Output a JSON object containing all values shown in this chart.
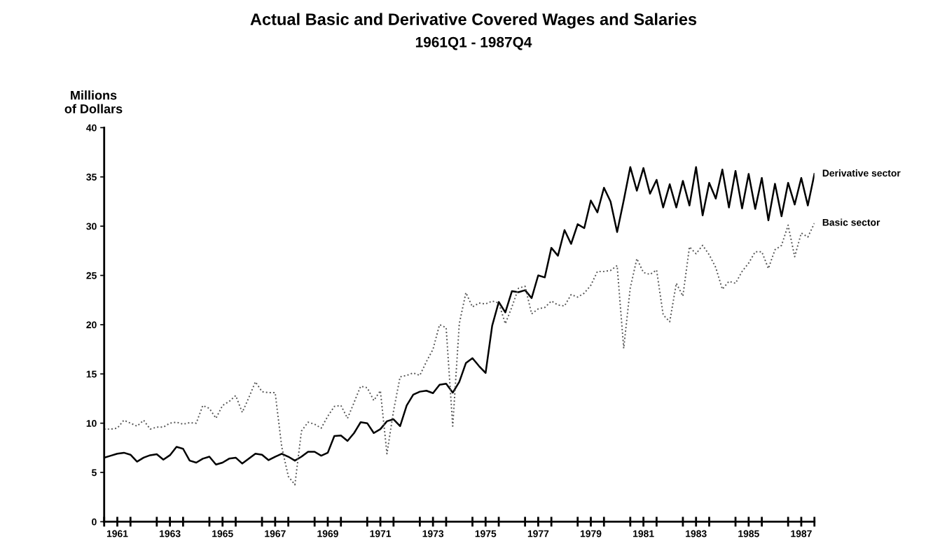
{
  "chart_data": {
    "type": "line",
    "title": "Actual Basic and Derivative Covered Wages and Salaries",
    "subtitle": "1961Q1 - 1987Q4",
    "ylabel": "Millions\nof Dollars",
    "x": [
      1961,
      1961.25,
      1961.5,
      1961.75,
      1962,
      1962.25,
      1962.5,
      1962.75,
      1963,
      1963.25,
      1963.5,
      1963.75,
      1964,
      1964.25,
      1964.5,
      1964.75,
      1965,
      1965.25,
      1965.5,
      1965.75,
      1966,
      1966.25,
      1966.5,
      1966.75,
      1967,
      1967.25,
      1967.5,
      1967.75,
      1968,
      1968.25,
      1968.5,
      1968.75,
      1969,
      1969.25,
      1969.5,
      1969.75,
      1970,
      1970.25,
      1970.5,
      1970.75,
      1971,
      1971.25,
      1971.5,
      1971.75,
      1972,
      1972.25,
      1972.5,
      1972.75,
      1973,
      1973.25,
      1973.5,
      1973.75,
      1974,
      1974.25,
      1974.5,
      1974.75,
      1975,
      1975.25,
      1975.5,
      1975.75,
      1976,
      1976.25,
      1976.5,
      1976.75,
      1977,
      1977.25,
      1977.5,
      1977.75,
      1978,
      1978.25,
      1978.5,
      1978.75,
      1979,
      1979.25,
      1979.5,
      1979.75,
      1980,
      1980.25,
      1980.5,
      1980.75,
      1981,
      1981.25,
      1981.5,
      1981.75,
      1982,
      1982.25,
      1982.5,
      1982.75,
      1983,
      1983.25,
      1983.5,
      1983.75,
      1984,
      1984.25,
      1984.5,
      1984.75,
      1985,
      1985.25,
      1985.5,
      1985.75,
      1986,
      1986.25,
      1986.5,
      1986.75,
      1987,
      1987.25,
      1987.5,
      1987.75,
      1988
    ],
    "series": [
      {
        "name": "Derivative sector",
        "color": "#000000",
        "line_style": "solid",
        "values": [
          6.5,
          6.7,
          6.9,
          7.0,
          6.8,
          6.1,
          6.5,
          6.75,
          6.85,
          6.3,
          6.75,
          7.6,
          7.4,
          6.2,
          6.0,
          6.4,
          6.6,
          5.8,
          6.0,
          6.4,
          6.5,
          5.9,
          6.4,
          6.9,
          6.8,
          6.25,
          6.6,
          6.9,
          6.6,
          6.2,
          6.6,
          7.1,
          7.1,
          6.7,
          7.0,
          8.7,
          8.75,
          8.2,
          9.0,
          10.1,
          10.0,
          9.0,
          9.4,
          10.2,
          10.4,
          9.7,
          11.8,
          12.9,
          13.2,
          13.3,
          13.05,
          13.9,
          14.0,
          13.1,
          14.2,
          16.1,
          16.6,
          15.8,
          15.1,
          19.9,
          22.3,
          21.25,
          23.4,
          23.3,
          23.5,
          22.7,
          25.0,
          24.8,
          27.8,
          27.0,
          29.6,
          28.2,
          30.2,
          29.8,
          32.6,
          31.4,
          33.9,
          32.5,
          29.4,
          32.6,
          36.0,
          33.6,
          35.9,
          33.3,
          34.7,
          31.9,
          34.25,
          31.9,
          34.6,
          32.1,
          36.0,
          31.1,
          34.4,
          32.8,
          35.75,
          31.9,
          35.6,
          31.8,
          35.3,
          31.75,
          34.9,
          30.6,
          34.3,
          31.0,
          34.4,
          32.2,
          34.9,
          32.1,
          35.3
        ]
      },
      {
        "name": "Basic sector",
        "color": "#555555",
        "line_style": "dotted",
        "values": [
          9.4,
          9.4,
          9.5,
          10.3,
          10.0,
          9.7,
          10.3,
          9.4,
          9.6,
          9.6,
          10.0,
          10.1,
          9.9,
          10.05,
          10.0,
          11.8,
          11.5,
          10.5,
          11.8,
          12.2,
          12.8,
          11.1,
          12.6,
          14.2,
          13.2,
          13.1,
          13.1,
          7.6,
          4.6,
          3.75,
          9.2,
          10.1,
          9.9,
          9.5,
          10.7,
          11.7,
          11.8,
          10.5,
          12.1,
          13.75,
          13.6,
          12.3,
          13.3,
          6.9,
          11.25,
          14.7,
          14.85,
          15.1,
          14.85,
          16.25,
          17.5,
          20.0,
          19.7,
          9.7,
          20.1,
          23.25,
          21.8,
          22.2,
          22.1,
          22.4,
          22.2,
          20.1,
          21.8,
          23.7,
          23.9,
          21.1,
          21.6,
          21.75,
          22.4,
          22.0,
          21.9,
          23.05,
          22.8,
          23.2,
          24.0,
          25.4,
          25.4,
          25.5,
          26.0,
          17.6,
          23.75,
          26.7,
          25.3,
          25.1,
          25.55,
          21.0,
          20.3,
          24.2,
          22.9,
          27.9,
          27.2,
          28.05,
          27.1,
          25.8,
          23.6,
          24.4,
          24.2,
          25.4,
          26.25,
          27.4,
          27.4,
          25.7,
          27.6,
          28.05,
          30.1,
          26.9,
          29.3,
          28.9,
          30.3
        ]
      }
    ],
    "xlim": [
      1961,
      1988
    ],
    "xticks": [
      {
        "value": 1961,
        "label": null
      },
      {
        "value": 1961.5,
        "label": "1961"
      },
      {
        "value": 1962,
        "label": null
      },
      {
        "value": 1963,
        "label": null
      },
      {
        "value": 1963.5,
        "label": "1963"
      },
      {
        "value": 1964,
        "label": null
      },
      {
        "value": 1965,
        "label": null
      },
      {
        "value": 1965.5,
        "label": "1965"
      },
      {
        "value": 1966,
        "label": null
      },
      {
        "value": 1967,
        "label": null
      },
      {
        "value": 1967.5,
        "label": "1967"
      },
      {
        "value": 1968,
        "label": null
      },
      {
        "value": 1969,
        "label": null
      },
      {
        "value": 1969.5,
        "label": "1969"
      },
      {
        "value": 1970,
        "label": null
      },
      {
        "value": 1971,
        "label": null
      },
      {
        "value": 1971.5,
        "label": "1971"
      },
      {
        "value": 1972,
        "label": null
      },
      {
        "value": 1973,
        "label": null
      },
      {
        "value": 1973.5,
        "label": "1973"
      },
      {
        "value": 1974,
        "label": null
      },
      {
        "value": 1975,
        "label": null
      },
      {
        "value": 1975.5,
        "label": "1975"
      },
      {
        "value": 1976,
        "label": null
      },
      {
        "value": 1977,
        "label": null
      },
      {
        "value": 1977.5,
        "label": "1977"
      },
      {
        "value": 1978,
        "label": null
      },
      {
        "value": 1979,
        "label": null
      },
      {
        "value": 1979.5,
        "label": "1979"
      },
      {
        "value": 1980,
        "label": null
      },
      {
        "value": 1981,
        "label": null
      },
      {
        "value": 1981.5,
        "label": "1981"
      },
      {
        "value": 1982,
        "label": null
      },
      {
        "value": 1983,
        "label": null
      },
      {
        "value": 1983.5,
        "label": "1983"
      },
      {
        "value": 1984,
        "label": null
      },
      {
        "value": 1985,
        "label": null
      },
      {
        "value": 1985.5,
        "label": "1985"
      },
      {
        "value": 1986,
        "label": null
      },
      {
        "value": 1987,
        "label": null
      },
      {
        "value": 1987.5,
        "label": "1987"
      },
      {
        "value": 1988,
        "label": null
      }
    ],
    "ylim": [
      0,
      40
    ],
    "yticks": [
      0,
      5,
      10,
      15,
      20,
      25,
      30,
      35,
      40
    ],
    "grid": false,
    "legend": false
  }
}
